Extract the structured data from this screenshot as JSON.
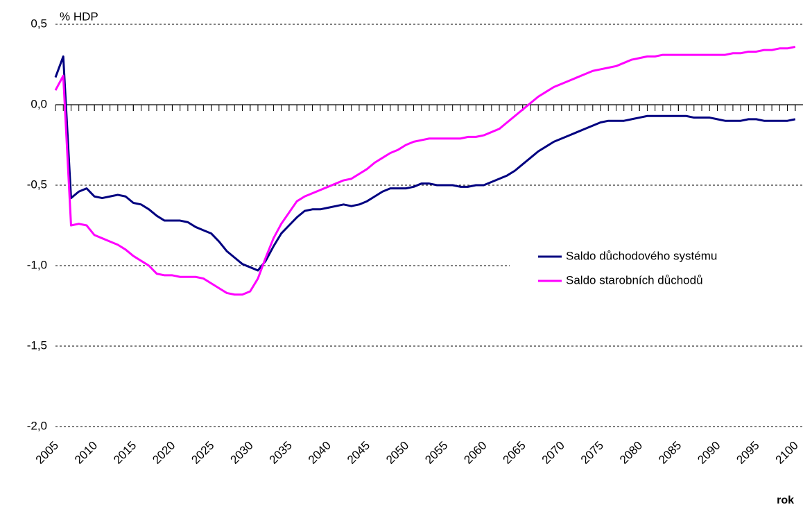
{
  "chart_data": {
    "type": "line",
    "y_label": "% HDP",
    "x_label": "rok",
    "x": [
      2005,
      2006,
      2007,
      2008,
      2009,
      2010,
      2011,
      2012,
      2013,
      2014,
      2015,
      2016,
      2017,
      2018,
      2019,
      2020,
      2021,
      2022,
      2023,
      2024,
      2025,
      2026,
      2027,
      2028,
      2029,
      2030,
      2031,
      2032,
      2033,
      2034,
      2035,
      2036,
      2037,
      2038,
      2039,
      2040,
      2041,
      2042,
      2043,
      2044,
      2045,
      2046,
      2047,
      2048,
      2049,
      2050,
      2051,
      2052,
      2053,
      2054,
      2055,
      2056,
      2057,
      2058,
      2059,
      2060,
      2061,
      2062,
      2063,
      2064,
      2065,
      2066,
      2067,
      2068,
      2069,
      2070,
      2071,
      2072,
      2073,
      2074,
      2075,
      2076,
      2077,
      2078,
      2079,
      2080,
      2081,
      2082,
      2083,
      2084,
      2085,
      2086,
      2087,
      2088,
      2089,
      2090,
      2091,
      2092,
      2093,
      2094,
      2095,
      2096,
      2097,
      2098,
      2099,
      2100
    ],
    "series": [
      {
        "name": "Saldo důchodového systému",
        "color": "#000080",
        "values": [
          0.17,
          0.3,
          -0.58,
          -0.54,
          -0.52,
          -0.57,
          -0.58,
          -0.57,
          -0.56,
          -0.57,
          -0.61,
          -0.62,
          -0.65,
          -0.69,
          -0.72,
          -0.72,
          -0.72,
          -0.73,
          -0.76,
          -0.78,
          -0.8,
          -0.85,
          -0.91,
          -0.95,
          -0.99,
          -1.01,
          -1.03,
          -0.97,
          -0.88,
          -0.8,
          -0.75,
          -0.7,
          -0.66,
          -0.65,
          -0.65,
          -0.64,
          -0.63,
          -0.62,
          -0.63,
          -0.62,
          -0.6,
          -0.57,
          -0.54,
          -0.52,
          -0.52,
          -0.52,
          -0.51,
          -0.49,
          -0.49,
          -0.5,
          -0.5,
          -0.5,
          -0.51,
          -0.51,
          -0.5,
          -0.5,
          -0.48,
          -0.46,
          -0.44,
          -0.41,
          -0.37,
          -0.33,
          -0.29,
          -0.26,
          -0.23,
          -0.21,
          -0.19,
          -0.17,
          -0.15,
          -0.13,
          -0.11,
          -0.1,
          -0.1,
          -0.1,
          -0.09,
          -0.08,
          -0.07,
          -0.07,
          -0.07,
          -0.07,
          -0.07,
          -0.07,
          -0.08,
          -0.08,
          -0.08,
          -0.09,
          -0.1,
          -0.1,
          -0.1,
          -0.09,
          -0.09,
          -0.1,
          -0.1,
          -0.1,
          -0.1,
          -0.09
        ]
      },
      {
        "name": "Saldo starobních důchodů",
        "color": "#ff00ff",
        "values": [
          0.09,
          0.18,
          -0.75,
          -0.74,
          -0.75,
          -0.81,
          -0.83,
          -0.85,
          -0.87,
          -0.9,
          -0.94,
          -0.97,
          -1.0,
          -1.05,
          -1.06,
          -1.06,
          -1.07,
          -1.07,
          -1.07,
          -1.08,
          -1.11,
          -1.14,
          -1.17,
          -1.18,
          -1.18,
          -1.16,
          -1.08,
          -0.95,
          -0.83,
          -0.74,
          -0.67,
          -0.6,
          -0.57,
          -0.55,
          -0.53,
          -0.51,
          -0.49,
          -0.47,
          -0.46,
          -0.43,
          -0.4,
          -0.36,
          -0.33,
          -0.3,
          -0.28,
          -0.25,
          -0.23,
          -0.22,
          -0.21,
          -0.21,
          -0.21,
          -0.21,
          -0.21,
          -0.2,
          -0.2,
          -0.19,
          -0.17,
          -0.15,
          -0.11,
          -0.07,
          -0.03,
          0.01,
          0.05,
          0.08,
          0.11,
          0.13,
          0.15,
          0.17,
          0.19,
          0.21,
          0.22,
          0.23,
          0.24,
          0.26,
          0.28,
          0.29,
          0.3,
          0.3,
          0.31,
          0.31,
          0.31,
          0.31,
          0.31,
          0.31,
          0.31,
          0.31,
          0.31,
          0.32,
          0.32,
          0.33,
          0.33,
          0.34,
          0.34,
          0.35,
          0.35,
          0.36
        ]
      }
    ],
    "xlim": [
      2005,
      2101
    ],
    "xticks": [
      2005,
      2010,
      2015,
      2020,
      2025,
      2030,
      2035,
      2040,
      2045,
      2050,
      2055,
      2060,
      2065,
      2070,
      2075,
      2080,
      2085,
      2090,
      2095,
      2100
    ],
    "ylim": [
      -2,
      0.5
    ],
    "yticks": [
      {
        "value": 0.5,
        "label": "0,5"
      },
      {
        "value": 0,
        "label": "0,0"
      },
      {
        "value": -0.5,
        "label": "-0,5"
      },
      {
        "value": -1,
        "label": "-1,0"
      },
      {
        "value": -1.5,
        "label": "-1,5"
      },
      {
        "value": -2,
        "label": "-2,0"
      }
    ],
    "grid": true,
    "legend": "right"
  }
}
